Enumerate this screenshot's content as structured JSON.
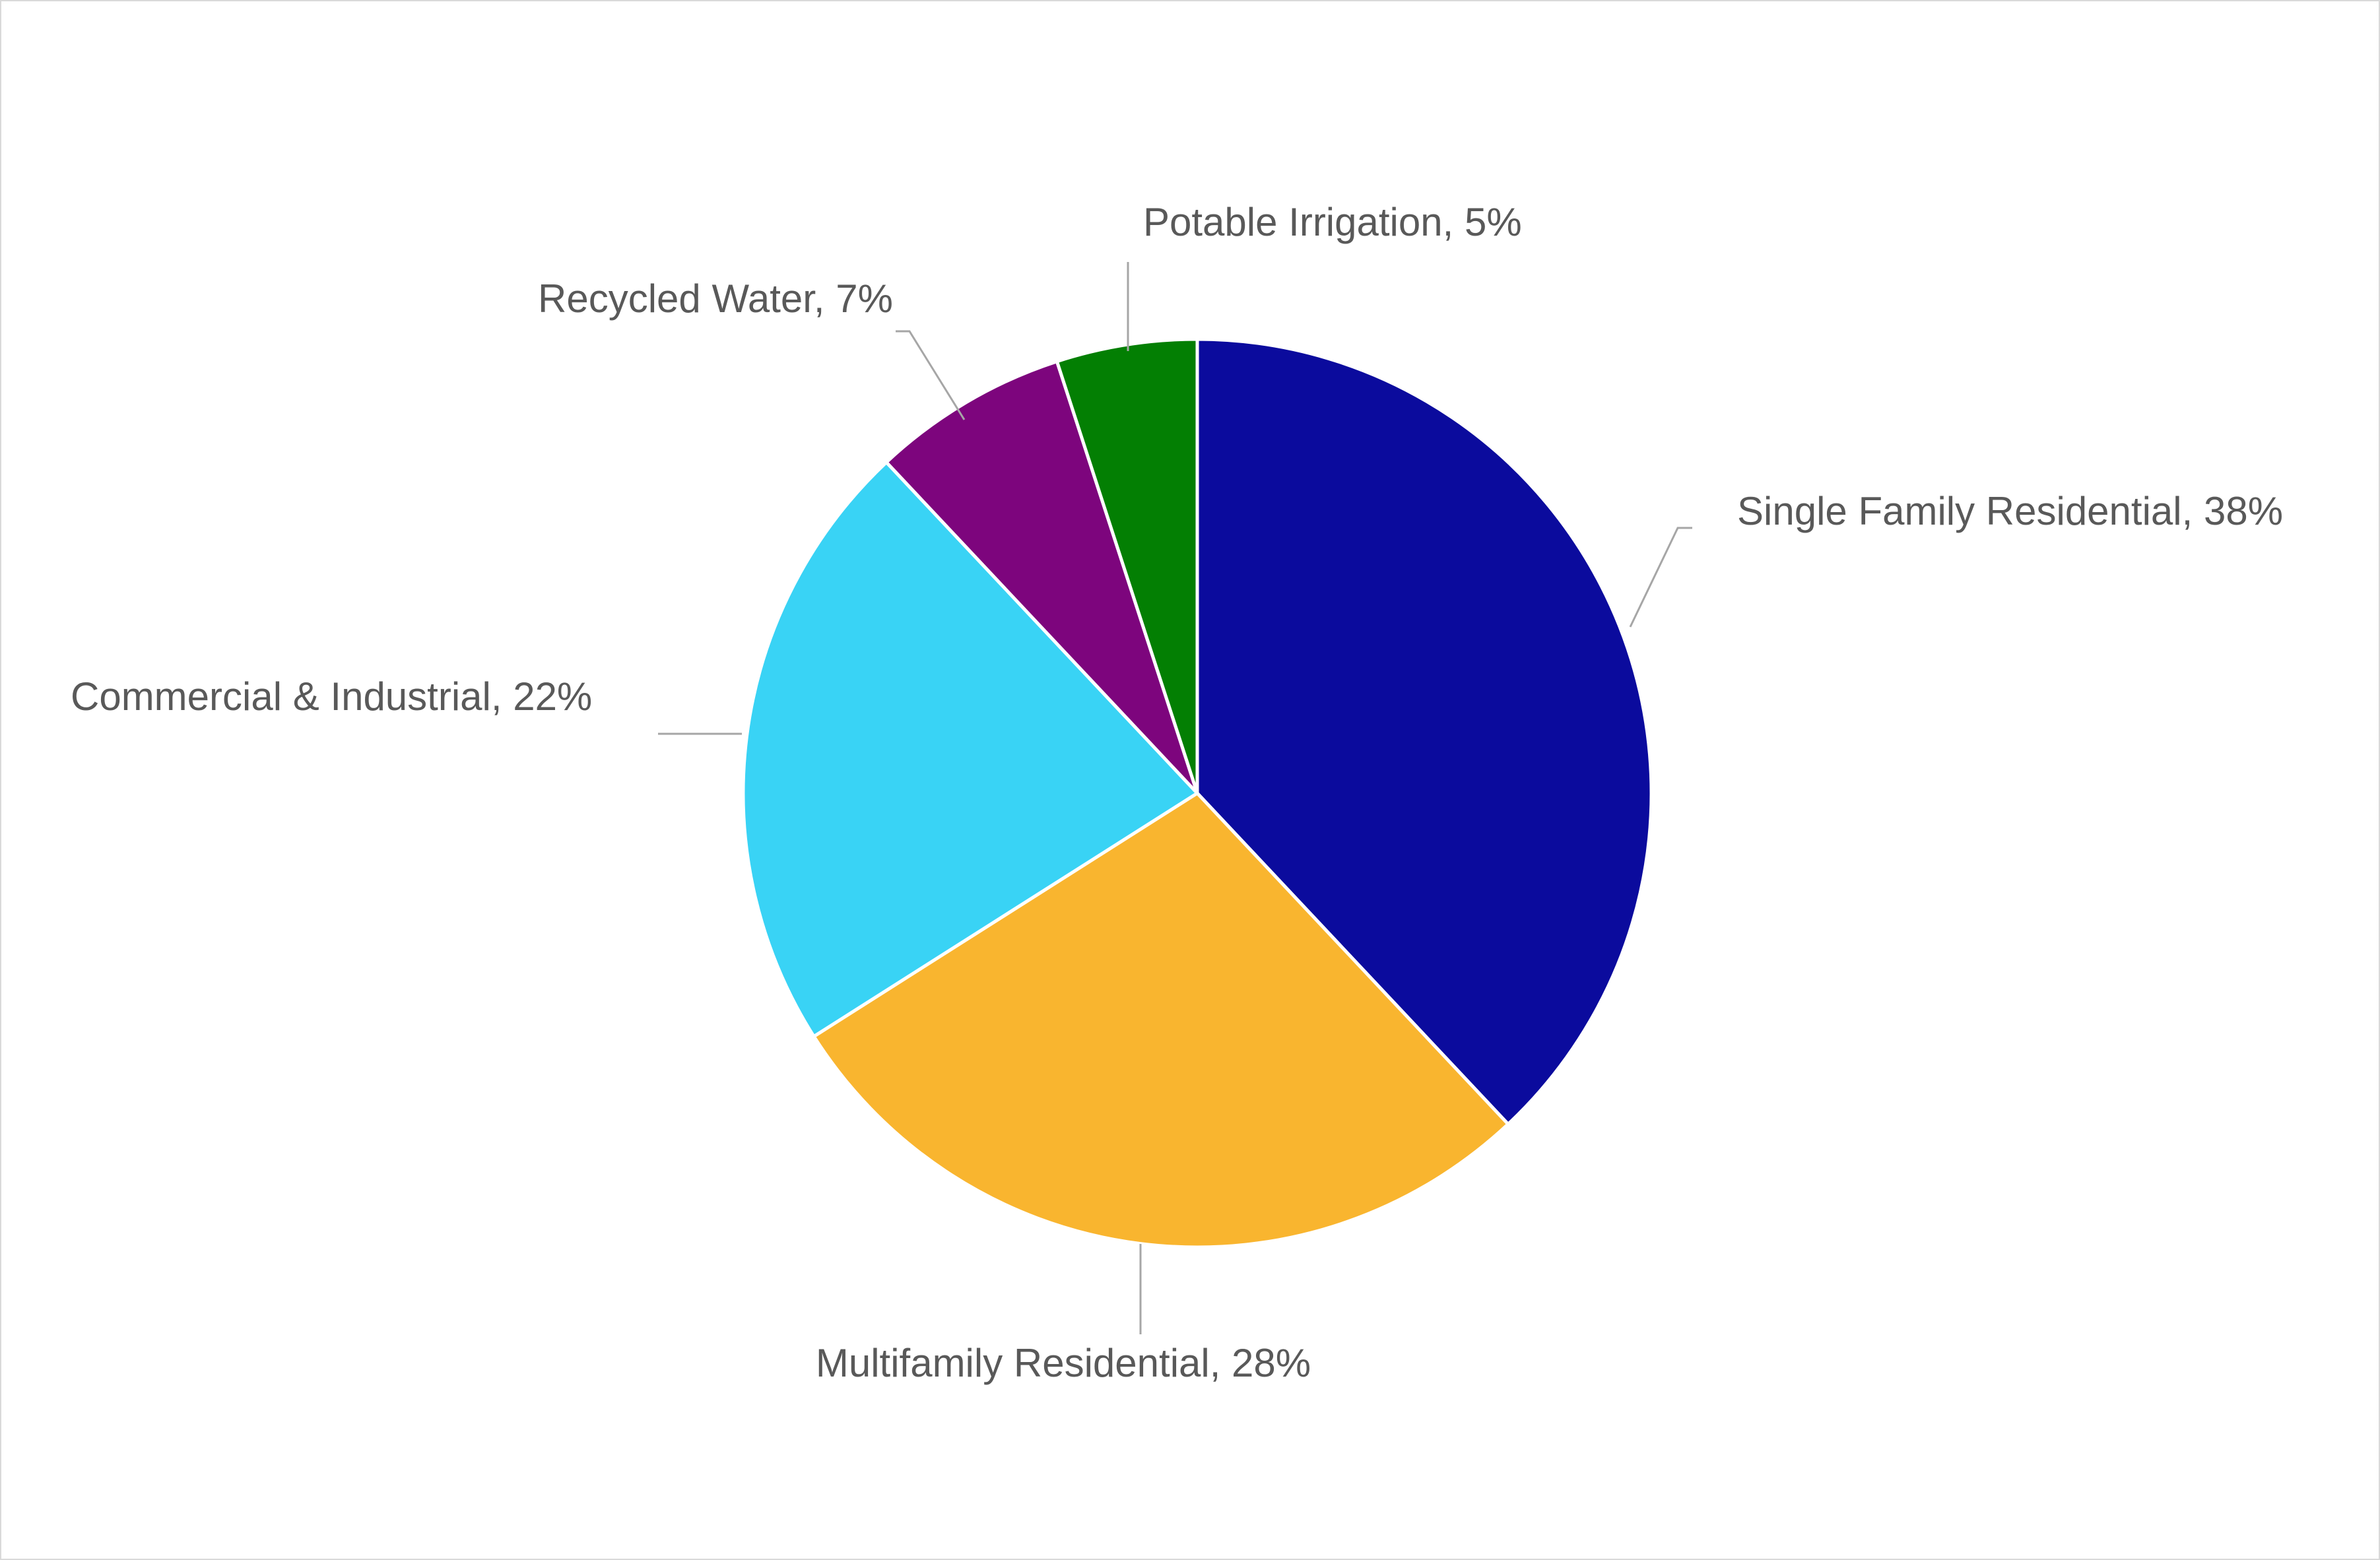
{
  "chart_data": {
    "type": "pie",
    "title": "",
    "unit": "%",
    "direction": "clockwise",
    "start_angle_deg": 0,
    "legend_position": "none",
    "background": "#FFFFFF",
    "label_color": "#595959",
    "leader_line_color": "#A6A6A6",
    "slice_gap_color": "#FFFFFF",
    "slices": [
      {
        "name": "Single Family Residential",
        "value": 38,
        "color": "#0B0B9D",
        "label": "Single Family Residential, 38%"
      },
      {
        "name": "Multifamily Residential",
        "value": 28,
        "color": "#F9B52F",
        "label": "Multifamily Residential, 28%"
      },
      {
        "name": "Commercial & Industrial",
        "value": 22,
        "color": "#39D3F5",
        "label": "Commercial & Industrial, 22%"
      },
      {
        "name": "Recycled Water",
        "value": 7,
        "color": "#7D057D",
        "label": "Recycled Water, 7%"
      },
      {
        "name": "Potable Irrigation",
        "value": 5,
        "color": "#037F03",
        "label": "Potable Irrigation, 5%"
      }
    ]
  }
}
